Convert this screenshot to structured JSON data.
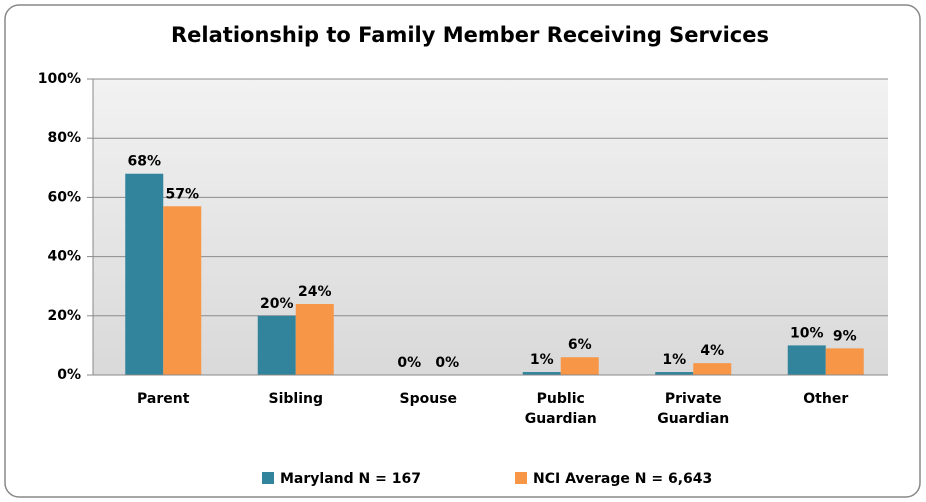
{
  "chart_data": {
    "type": "bar",
    "title": "Relationship to Family Member Receiving Services",
    "categories": [
      "Parent",
      "Sibling",
      "Spouse",
      "Public Guardian",
      "Private Guardian",
      "Other"
    ],
    "series": [
      {
        "name": "Maryland N = 167",
        "color": "#31849b",
        "values": [
          68,
          20,
          0,
          1,
          1,
          10
        ],
        "value_labels": [
          "68%",
          "20%",
          "0%",
          "1%",
          "1%",
          "10%"
        ]
      },
      {
        "name": "NCI Average N = 6,643",
        "color": "#f79646",
        "values": [
          57,
          24,
          0,
          6,
          4,
          9
        ],
        "value_labels": [
          "57%",
          "24%",
          "0%",
          "6%",
          "4%",
          "9%"
        ]
      }
    ],
    "ylim": [
      0,
      100
    ],
    "yticks": [
      {
        "value": 0,
        "label": "0%"
      },
      {
        "value": 20,
        "label": "20%"
      },
      {
        "value": 40,
        "label": "40%"
      },
      {
        "value": 60,
        "label": "60%"
      },
      {
        "value": 80,
        "label": "80%"
      },
      {
        "value": 100,
        "label": "100%"
      }
    ],
    "grid": true,
    "legend": "bottom"
  }
}
